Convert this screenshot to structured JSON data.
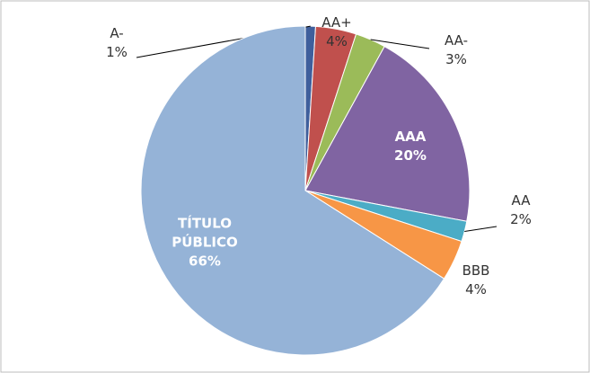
{
  "chart_data": {
    "type": "pie",
    "categories": [
      "A-",
      "AA+",
      "AA-",
      "AAA",
      "AA",
      "BBB",
      "TÍTULO PÚBLICO"
    ],
    "values": [
      1,
      4,
      3,
      20,
      2,
      4,
      66
    ],
    "value_labels": [
      "1%",
      "4%",
      "3%",
      "20%",
      "2%",
      "4%",
      "66%"
    ],
    "colors": [
      "#3f5f9c",
      "#c0504d",
      "#9bbb59",
      "#8064a2",
      "#4bacc6",
      "#f79646",
      "#95b3d7"
    ]
  }
}
